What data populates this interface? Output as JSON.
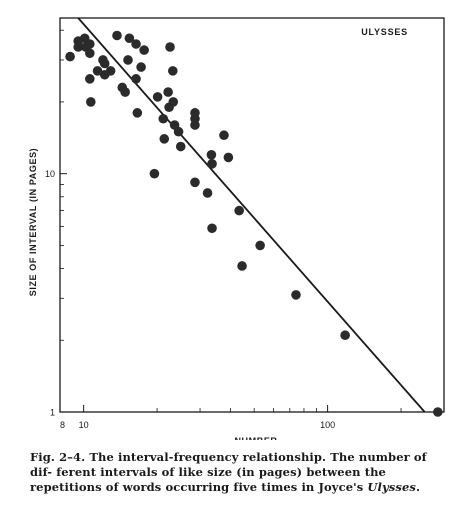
{
  "chart_data": {
    "type": "scatter",
    "title": "ULYSSES",
    "xlabel": "NUMBER",
    "ylabel": "SIZE OF INTERVAL (IN PAGES)",
    "x_scale": "log",
    "y_scale": "log",
    "xlim": [
      8,
      300
    ],
    "ylim": [
      1,
      45
    ],
    "x_ticks": [
      {
        "value": 8,
        "label": "8"
      },
      {
        "value": 10,
        "label": "10"
      },
      {
        "value": 100,
        "label": "100"
      }
    ],
    "y_ticks": [
      {
        "value": 1,
        "label": "1"
      },
      {
        "value": 10,
        "label": "10"
      }
    ],
    "grid": false,
    "points": [
      {
        "x": 8.8,
        "y": 31
      },
      {
        "x": 9.5,
        "y": 36
      },
      {
        "x": 9.5,
        "y": 34
      },
      {
        "x": 10.1,
        "y": 37
      },
      {
        "x": 10.2,
        "y": 34
      },
      {
        "x": 10.6,
        "y": 35
      },
      {
        "x": 10.6,
        "y": 32
      },
      {
        "x": 10.6,
        "y": 25
      },
      {
        "x": 10.7,
        "y": 20
      },
      {
        "x": 11.4,
        "y": 27
      },
      {
        "x": 12.0,
        "y": 30
      },
      {
        "x": 12.2,
        "y": 29
      },
      {
        "x": 12.2,
        "y": 26
      },
      {
        "x": 12.9,
        "y": 27
      },
      {
        "x": 13.7,
        "y": 38
      },
      {
        "x": 14.4,
        "y": 23
      },
      {
        "x": 14.8,
        "y": 22
      },
      {
        "x": 15.2,
        "y": 30
      },
      {
        "x": 15.4,
        "y": 37
      },
      {
        "x": 16.4,
        "y": 35
      },
      {
        "x": 16.4,
        "y": 25
      },
      {
        "x": 16.6,
        "y": 18
      },
      {
        "x": 17.2,
        "y": 28
      },
      {
        "x": 17.7,
        "y": 33
      },
      {
        "x": 19.5,
        "y": 10
      },
      {
        "x": 20.1,
        "y": 21
      },
      {
        "x": 21.2,
        "y": 17
      },
      {
        "x": 21.4,
        "y": 14
      },
      {
        "x": 22.2,
        "y": 22
      },
      {
        "x": 22.4,
        "y": 19
      },
      {
        "x": 22.6,
        "y": 34
      },
      {
        "x": 23.2,
        "y": 27
      },
      {
        "x": 23.3,
        "y": 20
      },
      {
        "x": 23.6,
        "y": 16
      },
      {
        "x": 24.5,
        "y": 15
      },
      {
        "x": 25.0,
        "y": 13
      },
      {
        "x": 28.6,
        "y": 18
      },
      {
        "x": 28.6,
        "y": 17
      },
      {
        "x": 28.6,
        "y": 16
      },
      {
        "x": 28.6,
        "y": 9.2
      },
      {
        "x": 32.2,
        "y": 8.3
      },
      {
        "x": 33.4,
        "y": 12
      },
      {
        "x": 33.6,
        "y": 11
      },
      {
        "x": 33.6,
        "y": 5.9
      },
      {
        "x": 37.6,
        "y": 14.5
      },
      {
        "x": 39.2,
        "y": 11.7
      },
      {
        "x": 43.4,
        "y": 7.0
      },
      {
        "x": 44.6,
        "y": 4.1
      },
      {
        "x": 52.9,
        "y": 5.0
      },
      {
        "x": 74.2,
        "y": 3.1
      },
      {
        "x": 118,
        "y": 2.1
      },
      {
        "x": 283,
        "y": 1.0
      }
    ],
    "fit_line": {
      "x": [
        9.5,
        250
      ],
      "y": [
        45,
        1.0
      ]
    }
  },
  "caption": {
    "lead": "Fig. 2–4. The interval-frequency relationship. The number of dif- ferent intervals of like size (in pages) between the repetitions of words occurring five times in Joyce's ",
    "italic": "Ulysses",
    "end": "."
  },
  "colors": {
    "ink": "#1a1a1a",
    "point": "#2b2b2b",
    "background": "#ffffff"
  }
}
